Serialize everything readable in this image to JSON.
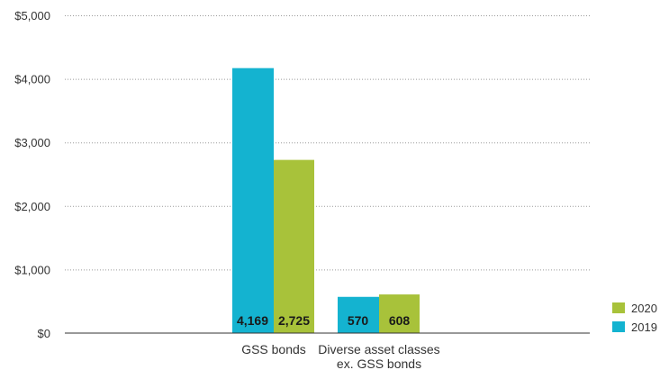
{
  "chart_data": {
    "type": "bar",
    "categories": [
      "GSS bonds",
      "Diverse asset classes\nex. GSS bonds"
    ],
    "series": [
      {
        "name": "2019",
        "values": [
          4169,
          570
        ],
        "labels": [
          "4,169",
          "570"
        ],
        "color": "#14b3d0"
      },
      {
        "name": "2020",
        "values": [
          2725,
          608
        ],
        "labels": [
          "2,725",
          "608"
        ],
        "color": "#a8c23a"
      }
    ],
    "yticks": [
      0,
      1000,
      2000,
      3000,
      4000,
      5000
    ],
    "ytick_labels": [
      "$0",
      "$1,000",
      "$2,000",
      "$3,000",
      "$4,000",
      "$5,000"
    ],
    "ylim": [
      0,
      5000
    ],
    "grid": true,
    "legend_position": "bottom-right",
    "legend_order": [
      "2020",
      "2019"
    ]
  }
}
